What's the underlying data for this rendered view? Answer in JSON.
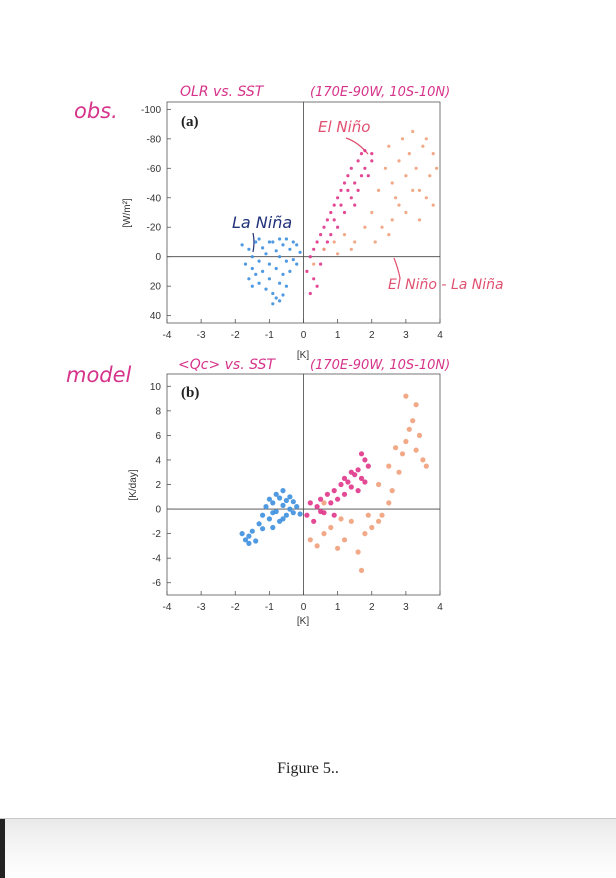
{
  "caption": "Figure 5..",
  "colors": {
    "la_nina": "#3d8fde",
    "el_nino": "#e0358a",
    "diff": "#f0a07a",
    "annot_magenta": "#d6338a",
    "annot_navy": "#20327a",
    "annot_pink": "#e05070"
  },
  "annotations": {
    "obs": "obs.",
    "model": "model",
    "title_a": "OLR vs. SST",
    "region_a": "(170E-90W, 10S-10N)",
    "title_b": "<Qc> vs. SST",
    "region_b": "(170E-90W, 10S-10N)",
    "el_nino": "El Niño",
    "la_nina": "La Niña",
    "diff": "El Niño - La Niña"
  },
  "chart_data": [
    {
      "type": "scatter",
      "panel_label": "(a)",
      "xlabel": "[K]",
      "ylabel": "[W/m²]",
      "xlim": [
        -4,
        4
      ],
      "ylim": [
        45,
        -105
      ],
      "y_inverted": true,
      "xticks": [
        -4,
        -3,
        -2,
        -1,
        0,
        1,
        2,
        3,
        4
      ],
      "yticks": [
        -100,
        -80,
        -60,
        -40,
        -20,
        0,
        20,
        40
      ],
      "reference_lines": {
        "x": 0,
        "y": 0
      },
      "series": [
        {
          "name": "La Niña",
          "color_key": "la_nina",
          "points": [
            [
              -1.8,
              -8
            ],
            [
              -1.7,
              5
            ],
            [
              -1.6,
              -5
            ],
            [
              -1.5,
              0
            ],
            [
              -1.5,
              8
            ],
            [
              -1.4,
              -10
            ],
            [
              -1.4,
              12
            ],
            [
              -1.3,
              3
            ],
            [
              -1.3,
              18
            ],
            [
              -1.2,
              -6
            ],
            [
              -1.2,
              10
            ],
            [
              -1.1,
              22
            ],
            [
              -1.1,
              -2
            ],
            [
              -1.0,
              5
            ],
            [
              -1.0,
              15
            ],
            [
              -0.9,
              -10
            ],
            [
              -0.9,
              25
            ],
            [
              -0.8,
              8
            ],
            [
              -0.8,
              28
            ],
            [
              -0.8,
              -4
            ],
            [
              -0.7,
              0
            ],
            [
              -0.7,
              18
            ],
            [
              -0.7,
              30
            ],
            [
              -0.6,
              -8
            ],
            [
              -0.6,
              12
            ],
            [
              -0.6,
              26
            ],
            [
              -0.5,
              3
            ],
            [
              -0.5,
              20
            ],
            [
              -0.5,
              -12
            ],
            [
              -0.4,
              -5
            ],
            [
              -0.4,
              10
            ],
            [
              -0.3,
              -10
            ],
            [
              -0.3,
              2
            ],
            [
              -0.2,
              -8
            ],
            [
              -0.2,
              5
            ],
            [
              -0.1,
              -3
            ],
            [
              -1.6,
              15
            ],
            [
              -1.3,
              -12
            ],
            [
              -1.0,
              -10
            ],
            [
              -0.7,
              -12
            ],
            [
              -1.5,
              20
            ],
            [
              -0.9,
              32
            ]
          ]
        },
        {
          "name": "El Niño",
          "color_key": "el_nino",
          "points": [
            [
              0.1,
              10
            ],
            [
              0.2,
              0
            ],
            [
              0.2,
              25
            ],
            [
              0.3,
              -5
            ],
            [
              0.3,
              15
            ],
            [
              0.4,
              -10
            ],
            [
              0.5,
              -15
            ],
            [
              0.5,
              5
            ],
            [
              0.6,
              -20
            ],
            [
              0.7,
              -25
            ],
            [
              0.7,
              -10
            ],
            [
              0.8,
              -30
            ],
            [
              0.8,
              -15
            ],
            [
              0.9,
              -35
            ],
            [
              1.0,
              -40
            ],
            [
              1.0,
              -20
            ],
            [
              1.1,
              -45
            ],
            [
              1.2,
              -50
            ],
            [
              1.2,
              -30
            ],
            [
              1.3,
              -55
            ],
            [
              1.4,
              -40
            ],
            [
              1.4,
              -60
            ],
            [
              1.5,
              -50
            ],
            [
              1.6,
              -65
            ],
            [
              1.6,
              -45
            ],
            [
              1.7,
              -70
            ],
            [
              1.8,
              -60
            ],
            [
              1.8,
              -72
            ],
            [
              1.9,
              -55
            ],
            [
              2.0,
              -65
            ],
            [
              2.0,
              -70
            ],
            [
              1.1,
              -35
            ],
            [
              0.9,
              -25
            ],
            [
              0.6,
              -5
            ],
            [
              1.3,
              -45
            ],
            [
              1.7,
              -55
            ],
            [
              1.5,
              -35
            ],
            [
              0.4,
              20
            ]
          ]
        },
        {
          "name": "El Niño - La Niña",
          "color_key": "diff",
          "points": [
            [
              0.3,
              5
            ],
            [
              0.6,
              -5
            ],
            [
              0.9,
              -10
            ],
            [
              1.2,
              -15
            ],
            [
              1.5,
              -10
            ],
            [
              1.8,
              -20
            ],
            [
              2.0,
              -30
            ],
            [
              2.2,
              -45
            ],
            [
              2.4,
              -60
            ],
            [
              2.5,
              -75
            ],
            [
              2.6,
              -50
            ],
            [
              2.7,
              -40
            ],
            [
              2.8,
              -65
            ],
            [
              2.9,
              -80
            ],
            [
              3.0,
              -55
            ],
            [
              3.1,
              -70
            ],
            [
              3.2,
              -85
            ],
            [
              3.3,
              -60
            ],
            [
              3.4,
              -45
            ],
            [
              3.5,
              -75
            ],
            [
              3.6,
              -80
            ],
            [
              3.7,
              -55
            ],
            [
              3.8,
              -35
            ],
            [
              3.8,
              -70
            ],
            [
              3.0,
              -30
            ],
            [
              2.3,
              -20
            ],
            [
              2.6,
              -25
            ],
            [
              3.4,
              -25
            ],
            [
              3.6,
              -40
            ],
            [
              1.4,
              -5
            ],
            [
              1.0,
              -2
            ],
            [
              2.1,
              -10
            ],
            [
              2.8,
              -35
            ],
            [
              3.2,
              -45
            ],
            [
              2.5,
              -15
            ],
            [
              3.9,
              -60
            ]
          ]
        }
      ]
    },
    {
      "type": "scatter",
      "panel_label": "(b)",
      "xlabel": "[K]",
      "ylabel": "[K/day]",
      "xlim": [
        -4,
        4
      ],
      "ylim": [
        -7,
        11
      ],
      "xticks": [
        -4,
        -3,
        -2,
        -1,
        0,
        1,
        2,
        3,
        4
      ],
      "yticks": [
        -6,
        -4,
        -2,
        0,
        2,
        4,
        6,
        8,
        10
      ],
      "reference_lines": {
        "x": 0,
        "y": 0
      },
      "series": [
        {
          "name": "La Niña",
          "color_key": "la_nina",
          "points": [
            [
              -1.7,
              -2.5
            ],
            [
              -1.6,
              -2.2
            ],
            [
              -1.5,
              -1.8
            ],
            [
              -1.4,
              -2.6
            ],
            [
              -1.3,
              -1.2
            ],
            [
              -1.2,
              -0.5
            ],
            [
              -1.1,
              0.2
            ],
            [
              -1.0,
              -0.8
            ],
            [
              -1.0,
              0.8
            ],
            [
              -0.9,
              0.5
            ],
            [
              -0.9,
              -1.5
            ],
            [
              -0.8,
              1.2
            ],
            [
              -0.8,
              -0.2
            ],
            [
              -0.7,
              0.9
            ],
            [
              -0.7,
              -1.0
            ],
            [
              -0.6,
              0.3
            ],
            [
              -0.6,
              1.5
            ],
            [
              -0.5,
              -0.5
            ],
            [
              -0.5,
              0.7
            ],
            [
              -0.4,
              0.0
            ],
            [
              -0.4,
              1.0
            ],
            [
              -0.3,
              -0.3
            ],
            [
              -0.3,
              0.6
            ],
            [
              -0.2,
              0.2
            ],
            [
              -0.1,
              -0.4
            ],
            [
              -1.6,
              -2.8
            ],
            [
              -1.2,
              -1.6
            ],
            [
              -1.8,
              -2.0
            ],
            [
              -0.9,
              -0.3
            ],
            [
              -0.6,
              -0.8
            ]
          ]
        },
        {
          "name": "El Niño",
          "color_key": "el_nino",
          "points": [
            [
              0.1,
              -0.5
            ],
            [
              0.2,
              0.5
            ],
            [
              0.3,
              -1.0
            ],
            [
              0.4,
              0.2
            ],
            [
              0.5,
              0.8
            ],
            [
              0.6,
              -0.3
            ],
            [
              0.7,
              1.2
            ],
            [
              0.8,
              0.5
            ],
            [
              0.9,
              1.5
            ],
            [
              1.0,
              0.8
            ],
            [
              1.1,
              2.0
            ],
            [
              1.2,
              1.2
            ],
            [
              1.3,
              2.2
            ],
            [
              1.4,
              1.8
            ],
            [
              1.5,
              2.8
            ],
            [
              1.6,
              3.2
            ],
            [
              1.7,
              2.5
            ],
            [
              1.8,
              4.0
            ],
            [
              1.9,
              3.5
            ],
            [
              1.7,
              4.5
            ],
            [
              1.6,
              1.5
            ],
            [
              1.2,
              2.5
            ],
            [
              0.9,
              -0.5
            ],
            [
              0.5,
              -0.2
            ],
            [
              1.4,
              3.0
            ],
            [
              1.8,
              2.2
            ]
          ]
        },
        {
          "name": "El Niño - La Niña",
          "color_key": "diff",
          "points": [
            [
              0.2,
              -2.5
            ],
            [
              0.4,
              -3.0
            ],
            [
              0.6,
              -2.0
            ],
            [
              0.8,
              -1.5
            ],
            [
              1.0,
              -3.2
            ],
            [
              1.2,
              -2.5
            ],
            [
              1.4,
              -1.0
            ],
            [
              1.6,
              -3.5
            ],
            [
              1.7,
              -5.0
            ],
            [
              1.8,
              -2.0
            ],
            [
              2.0,
              -1.5
            ],
            [
              2.2,
              -1.0
            ],
            [
              2.3,
              -0.5
            ],
            [
              2.5,
              0.5
            ],
            [
              2.6,
              1.5
            ],
            [
              2.8,
              3.0
            ],
            [
              2.9,
              4.5
            ],
            [
              3.0,
              5.5
            ],
            [
              3.1,
              6.5
            ],
            [
              3.2,
              7.2
            ],
            [
              3.3,
              8.5
            ],
            [
              3.4,
              6.0
            ],
            [
              3.5,
              4.0
            ],
            [
              3.6,
              3.5
            ],
            [
              3.0,
              9.2
            ],
            [
              2.5,
              3.5
            ],
            [
              2.2,
              2.0
            ],
            [
              1.9,
              -0.5
            ],
            [
              2.7,
              5.0
            ],
            [
              3.3,
              4.8
            ],
            [
              0.6,
              0.5
            ],
            [
              1.1,
              -0.8
            ]
          ]
        }
      ]
    }
  ]
}
